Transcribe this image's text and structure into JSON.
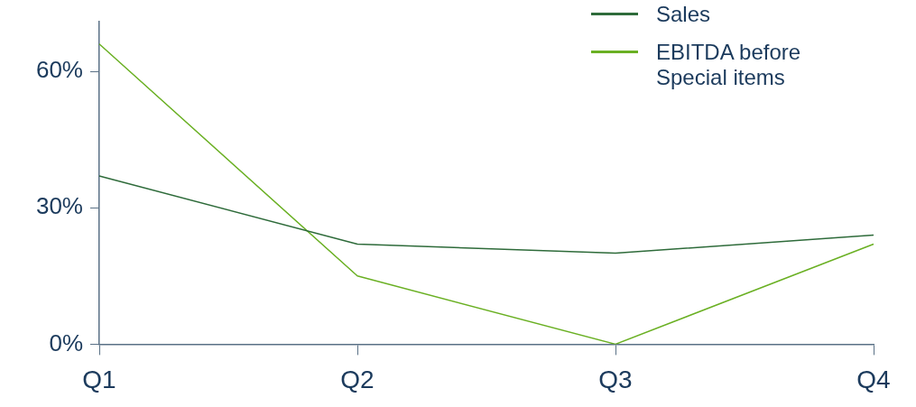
{
  "chart_data": {
    "type": "line",
    "categories": [
      "Q1",
      "Q2",
      "Q3",
      "Q4"
    ],
    "ylim": [
      0,
      71
    ],
    "yticks": [
      {
        "value": 0,
        "label": "0%"
      },
      {
        "value": 30,
        "label": "30%"
      },
      {
        "value": 60,
        "label": "60%"
      }
    ],
    "legend": "top right",
    "series": [
      {
        "name": "Sales",
        "color": "#2e6b3a",
        "values": [
          37,
          22,
          20,
          24
        ]
      },
      {
        "name": "EBITDA before Special items",
        "color": "#6ab023",
        "values": [
          66,
          15,
          0,
          22
        ]
      }
    ]
  }
}
